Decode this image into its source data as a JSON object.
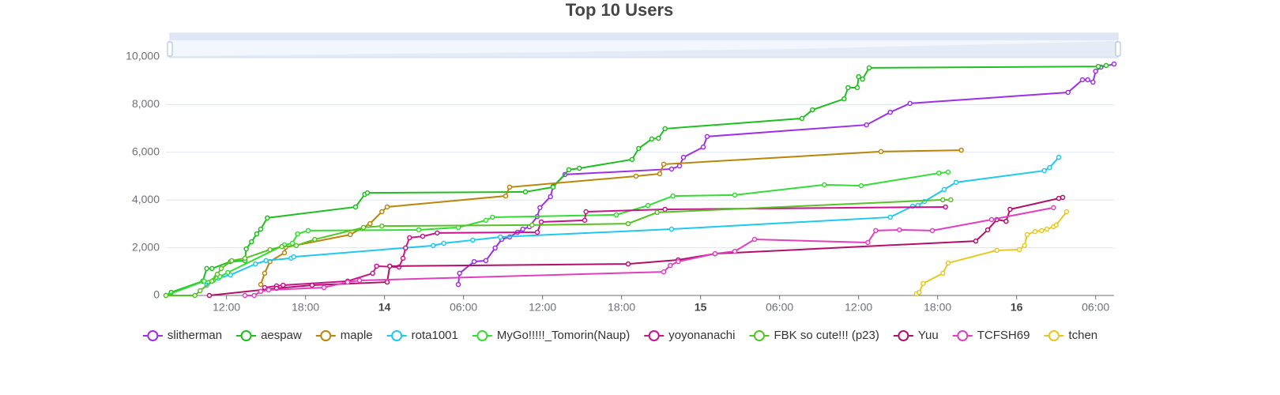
{
  "chart_data": {
    "type": "line",
    "title": "Top 10 Users",
    "xlim": [
      7.4,
      79.4
    ],
    "xticks": [
      {
        "value": 12,
        "label": "12:00"
      },
      {
        "value": 18,
        "label": "18:00"
      },
      {
        "value": 24,
        "label": "14"
      },
      {
        "value": 30,
        "label": "06:00"
      },
      {
        "value": 36,
        "label": "12:00"
      },
      {
        "value": 42,
        "label": "18:00"
      },
      {
        "value": 48,
        "label": "15"
      },
      {
        "value": 54,
        "label": "06:00"
      },
      {
        "value": 60,
        "label": "12:00"
      },
      {
        "value": 66,
        "label": "18:00"
      },
      {
        "value": 72,
        "label": "16"
      },
      {
        "value": 78,
        "label": "06:00"
      }
    ],
    "ylim": [
      0,
      10000
    ],
    "yticks": [
      0,
      {
        "value": 2000,
        "label": "2,000"
      },
      {
        "value": 4000,
        "label": "4,000"
      },
      {
        "value": 6000,
        "label": "6,000"
      },
      {
        "value": 8000,
        "label": "8,000"
      },
      {
        "value": 10000,
        "label": "10,000"
      }
    ],
    "grid": true,
    "legend": "bottom",
    "series": [
      {
        "name": "slitherman",
        "color": "#9b30e8",
        "x": [
          29.6,
          29.7,
          30.8,
          31.7,
          32.4,
          32.9,
          33.5,
          34.1,
          34.5,
          35.0,
          35.6,
          35.8,
          36.6,
          36.8,
          37.7,
          45.8,
          46.4,
          46.7,
          48.2,
          48.5,
          60.6,
          62.4,
          63.9,
          75.9,
          77.0,
          77.4,
          77.8,
          78.0,
          78.4,
          79.4
        ],
        "values": [
          460,
          930,
          1420,
          1460,
          1990,
          2350,
          2450,
          2650,
          2780,
          2880,
          3310,
          3680,
          4140,
          4570,
          5070,
          5300,
          5430,
          5790,
          6220,
          6660,
          7150,
          7680,
          8050,
          8510,
          9040,
          9040,
          8940,
          9400,
          9570,
          9700
        ]
      },
      {
        "name": "aespaw",
        "color": "#1fbf1f",
        "x": [
          7.4,
          7.8,
          10.2,
          10.5,
          10.9,
          12.3,
          13.4,
          13.5,
          13.9,
          14.3,
          14.6,
          15.1,
          21.8,
          22.5,
          22.7,
          34.7,
          36.8,
          38.0,
          38.8,
          42.8,
          43.3,
          44.3,
          44.8,
          45.3,
          55.7,
          56.5,
          58.9,
          59.2,
          59.9,
          60.0,
          60.3,
          60.8,
          78.2,
          78.8
        ],
        "values": [
          0,
          130,
          600,
          1130,
          1130,
          1420,
          1460,
          1950,
          2250,
          2580,
          2780,
          3250,
          3710,
          4240,
          4300,
          4340,
          4540,
          5270,
          5330,
          5700,
          6160,
          6560,
          6590,
          6990,
          7420,
          7780,
          8240,
          8710,
          8710,
          9170,
          9070,
          9540,
          9600,
          9640
        ]
      },
      {
        "name": "maple",
        "color": "#b8860b",
        "x": [
          14.6,
          14.9,
          15.3,
          16.4,
          16.5,
          21.4,
          22.9,
          23.8,
          24.2,
          33.2,
          33.5,
          43.1,
          44.9,
          45.2,
          61.7,
          67.8
        ],
        "values": [
          460,
          930,
          1420,
          1790,
          2020,
          2550,
          3010,
          3510,
          3710,
          4170,
          4540,
          5000,
          5100,
          5500,
          6030,
          6090
        ]
      },
      {
        "name": "rota1001",
        "color": "#1ec8f0",
        "x": [
          10.5,
          11.4,
          12.3,
          14.2,
          15.0,
          16.9,
          17.1,
          27.7,
          28.5,
          30.7,
          32.8,
          45.8,
          62.4,
          64.1,
          64.5,
          65.0,
          66.5,
          67.4,
          74.1,
          74.5,
          75.2
        ],
        "values": [
          430,
          730,
          860,
          1320,
          1460,
          1560,
          1620,
          2090,
          2190,
          2320,
          2450,
          2780,
          3280,
          3740,
          3770,
          3940,
          4440,
          4740,
          5230,
          5360,
          5790
        ]
      },
      {
        "name": "MyGo!!!!!_Tomorin(Naup)",
        "color": "#33dd33",
        "x": [
          7.4,
          10.3,
          11.0,
          11.2,
          11.5,
          12.1,
          16.4,
          17.0,
          17.4,
          18.2,
          26.6,
          29.6,
          31.7,
          32.2,
          41.6,
          44.0,
          45.9,
          50.6,
          57.4,
          60.2,
          66.1,
          66.8
        ],
        "values": [
          0,
          600,
          630,
          760,
          790,
          960,
          2120,
          2190,
          2580,
          2720,
          2750,
          2850,
          3150,
          3280,
          3380,
          3770,
          4170,
          4210,
          4640,
          4600,
          5130,
          5170
        ]
      },
      {
        "name": "yoyonanachi",
        "color": "#c8148c",
        "x": [
          14.6,
          14.9,
          15.8,
          16.3,
          21.2,
          23.1,
          23.4,
          25.1,
          25.4,
          25.6,
          25.9,
          26.9,
          28.0,
          35.6,
          35.9,
          39.2,
          39.3,
          45.3,
          66.6
        ],
        "values": [
          170,
          330,
          400,
          430,
          600,
          930,
          1230,
          1190,
          1560,
          1990,
          2420,
          2480,
          2620,
          2650,
          3080,
          3150,
          3510,
          3610,
          3710
        ]
      },
      {
        "name": "FBK so cute!!! (p23)",
        "color": "#55c422",
        "x": [
          7.4,
          9.6,
          10.0,
          10.9,
          11.3,
          11.6,
          12.4,
          13.4,
          15.3,
          16.2,
          17.3,
          18.7,
          22.4,
          23.8,
          35.2,
          42.5,
          44.7,
          66.4,
          67.0
        ],
        "values": [
          0,
          0,
          200,
          600,
          890,
          1130,
          1460,
          1560,
          1920,
          2050,
          2090,
          2350,
          2850,
          2910,
          2950,
          3010,
          3480,
          4010,
          4010
        ]
      },
      {
        "name": "Yuu",
        "color": "#b0106a",
        "x": [
          10.7,
          15.8,
          18.5,
          24.2,
          24.4,
          42.5,
          46.3,
          49.1,
          68.9,
          69.8,
          70.5,
          71.2,
          71.5,
          75.2,
          75.5
        ],
        "values": [
          0,
          300,
          430,
          560,
          1230,
          1320,
          1490,
          1750,
          2280,
          2750,
          3180,
          3110,
          3610,
          4070,
          4110
        ]
      },
      {
        "name": "TCFSH69",
        "color": "#e040c0",
        "x": [
          13.4,
          14.1,
          14.6,
          15.2,
          19.4,
          21.2,
          22.1,
          45.2,
          45.7,
          46.3,
          49.1,
          50.6,
          52.1,
          60.7,
          61.3,
          63.1,
          65.6,
          70.1,
          74.8
        ],
        "values": [
          0,
          0,
          170,
          230,
          330,
          560,
          630,
          990,
          1260,
          1420,
          1750,
          1850,
          2350,
          2220,
          2720,
          2750,
          2720,
          3180,
          3680
        ]
      },
      {
        "name": "tchen",
        "color": "#e8c820",
        "x": [
          64.4,
          64.6,
          64.9,
          66.4,
          66.8,
          70.5,
          72.2,
          72.6,
          72.8,
          73.4,
          73.9,
          74.3,
          74.8,
          75.0,
          75.8
        ],
        "values": [
          70,
          130,
          500,
          930,
          1360,
          1890,
          1920,
          2090,
          2550,
          2680,
          2720,
          2780,
          2880,
          2950,
          3510
        ]
      }
    ]
  }
}
